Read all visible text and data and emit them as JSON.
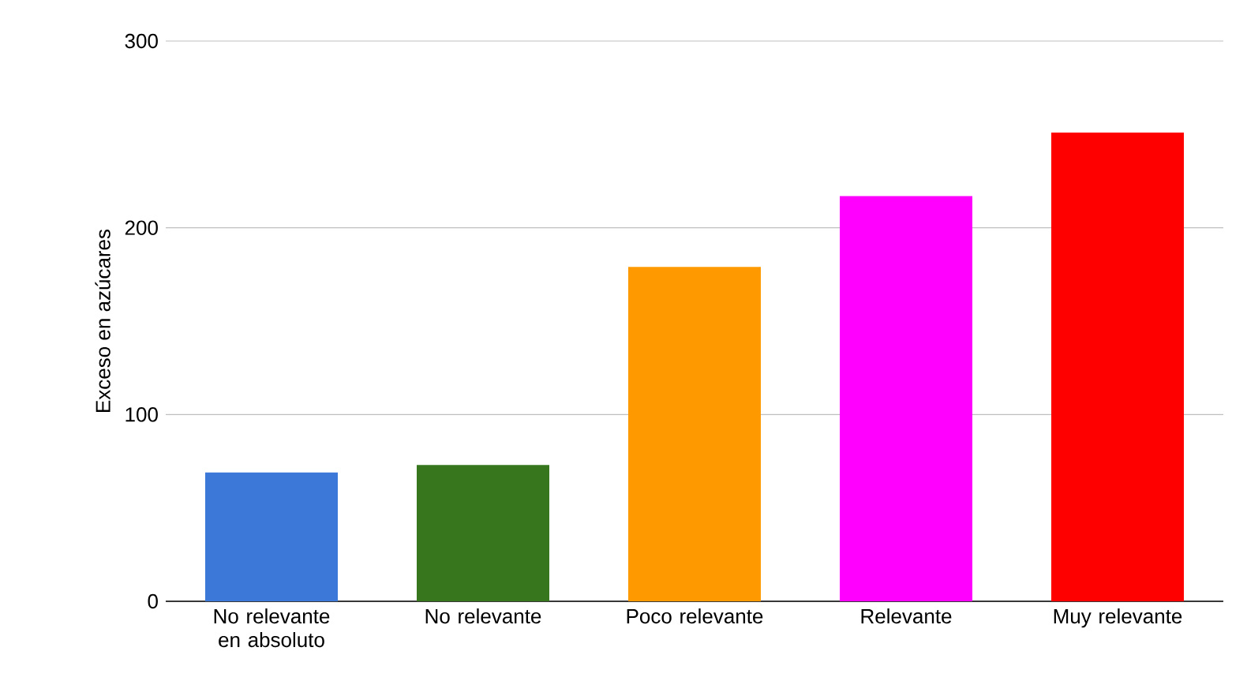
{
  "chart_data": {
    "type": "bar",
    "ylabel": "Exceso en azúcares",
    "categories": [
      "No relevante en absoluto",
      "No relevante",
      "Poco relevante",
      "Relevante",
      "Muy relevante"
    ],
    "values": [
      69,
      73,
      179,
      217,
      251
    ],
    "colors": [
      "#3c78d8",
      "#38761d",
      "#ff9900",
      "#ff00ff",
      "#ff0000"
    ],
    "ylim": [
      0,
      300
    ],
    "yticks": [
      0,
      100,
      200,
      300
    ],
    "grid": "y"
  }
}
